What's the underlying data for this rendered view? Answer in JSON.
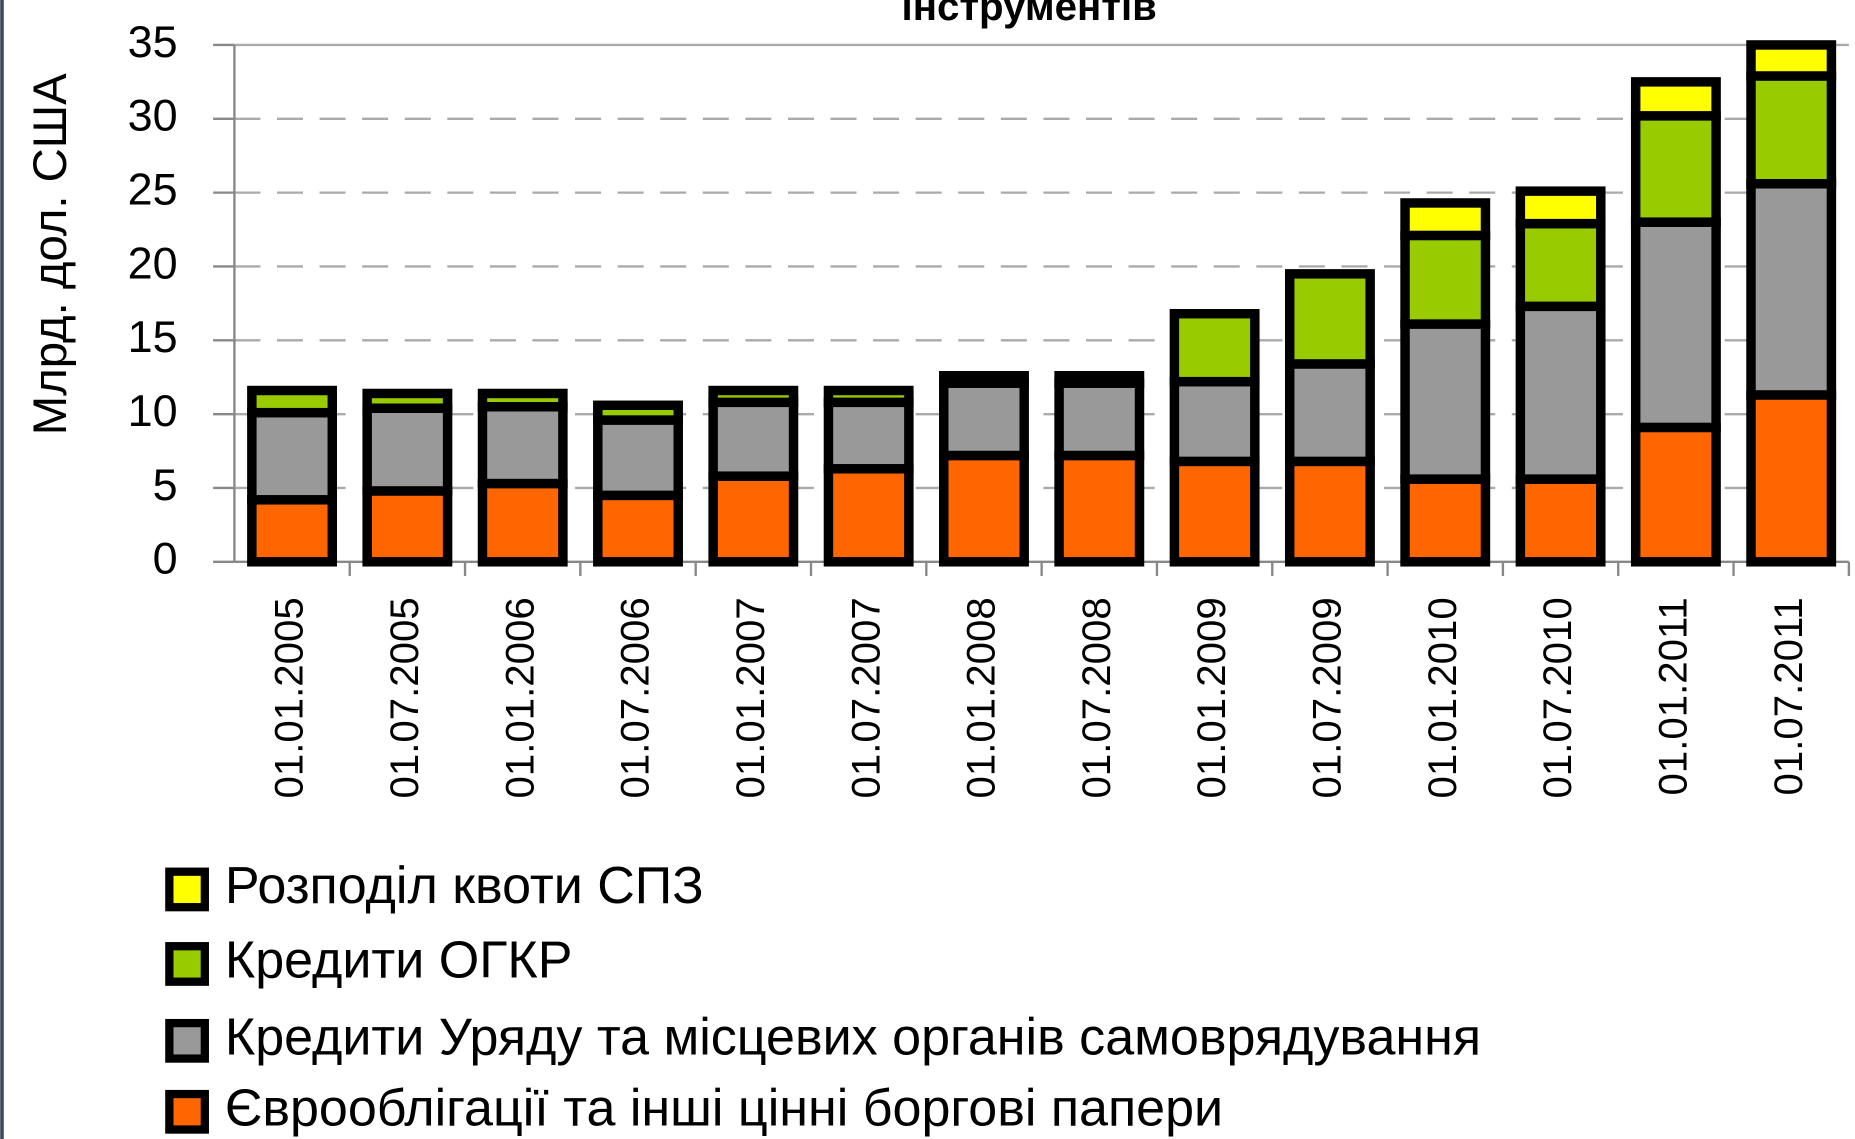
{
  "chart_data": {
    "type": "stacked_bar",
    "title": "інструментів",
    "y_label": "Млрд. дол. США",
    "categories": [
      "01.01.2005",
      "01.07.2005",
      "01.01.2006",
      "01.07.2006",
      "01.01.2007",
      "01.07.2007",
      "01.01.2008",
      "01.07.2008",
      "01.01.2009",
      "01.07.2009",
      "01.01.2010",
      "01.07.2010",
      "01.01.2011",
      "01.07.2011"
    ],
    "series": [
      {
        "name": "Єврооблігації та інші цінні боргові папери",
        "color": "#ff6600",
        "values": [
          4.2,
          4.8,
          5.3,
          4.5,
          5.8,
          6.3,
          7.2,
          7.2,
          6.8,
          6.8,
          5.6,
          5.6,
          9.1,
          11.3
        ]
      },
      {
        "name": "Кредити Уряду та місцевих органів самоврядування",
        "color": "#999999",
        "values": [
          5.9,
          5.6,
          5.2,
          5.1,
          5.0,
          4.5,
          4.9,
          4.9,
          5.4,
          6.6,
          10.5,
          11.7,
          13.9,
          14.3
        ]
      },
      {
        "name": "Кредити ОГКР",
        "color": "#99cc00",
        "values": [
          1.5,
          1.0,
          0.9,
          1.0,
          0.8,
          0.8,
          0.5,
          0.5,
          4.6,
          6.1,
          6.0,
          5.6,
          7.2,
          7.3
        ]
      },
      {
        "name": "Розподіл квоти СПЗ",
        "color": "#ffff00",
        "values": [
          0,
          0,
          0,
          0,
          0,
          0,
          0,
          0,
          0,
          0,
          2.2,
          2.2,
          2.3,
          2.1
        ]
      }
    ],
    "ylim": [
      0,
      35
    ],
    "yticks": [
      0,
      5,
      10,
      15,
      20,
      25,
      30,
      35
    ],
    "grid": true
  }
}
